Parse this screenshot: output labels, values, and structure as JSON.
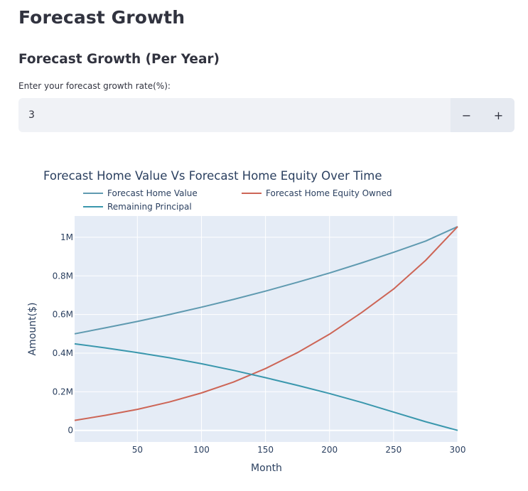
{
  "page": {
    "title": "Forecast Growth",
    "section_title": "Forecast Growth (Per Year)"
  },
  "growth_input": {
    "label": "Enter your forecast growth rate(%):",
    "value": "3",
    "decrement_label": "−",
    "increment_label": "+"
  },
  "chart_data": {
    "type": "line",
    "title": "Forecast Home Value Vs Forecast Home Equity Over Time",
    "xlabel": "Month",
    "ylabel": "Amount($)",
    "xlim": [
      1,
      300
    ],
    "ylim": [
      -60000,
      1110000
    ],
    "x_ticks": [
      50,
      100,
      150,
      200,
      250,
      300
    ],
    "x_tick_labels": [
      "50",
      "100",
      "150",
      "200",
      "250",
      "300"
    ],
    "y_ticks": [
      0,
      200000,
      400000,
      600000,
      800000,
      1000000
    ],
    "y_tick_labels": [
      "0",
      "0.2M",
      "0.4M",
      "0.6M",
      "0.8M",
      "1M"
    ],
    "grid": true,
    "legend_position": "top",
    "x": [
      1,
      25,
      50,
      75,
      100,
      125,
      150,
      175,
      200,
      225,
      250,
      275,
      300
    ],
    "series": [
      {
        "name": "Forecast Home Value",
        "color": "#5f9ab0",
        "values": [
          500000,
          531000,
          564000,
          600000,
          638000,
          678000,
          721000,
          767000,
          815000,
          867000,
          922000,
          980000,
          1055000
        ]
      },
      {
        "name": "Forecast Home Equity Owned",
        "color": "#cd6556",
        "values": [
          52000,
          78000,
          109000,
          147000,
          194000,
          250000,
          320000,
          403000,
          498000,
          610000,
          732000,
          880000,
          1055000
        ]
      },
      {
        "name": "Remaining Principal",
        "color": "#3a97ad",
        "values": [
          448000,
          427000,
          403000,
          376000,
          345000,
          311000,
          273000,
          233000,
          191000,
          145000,
          95000,
          45000,
          0
        ]
      }
    ]
  }
}
